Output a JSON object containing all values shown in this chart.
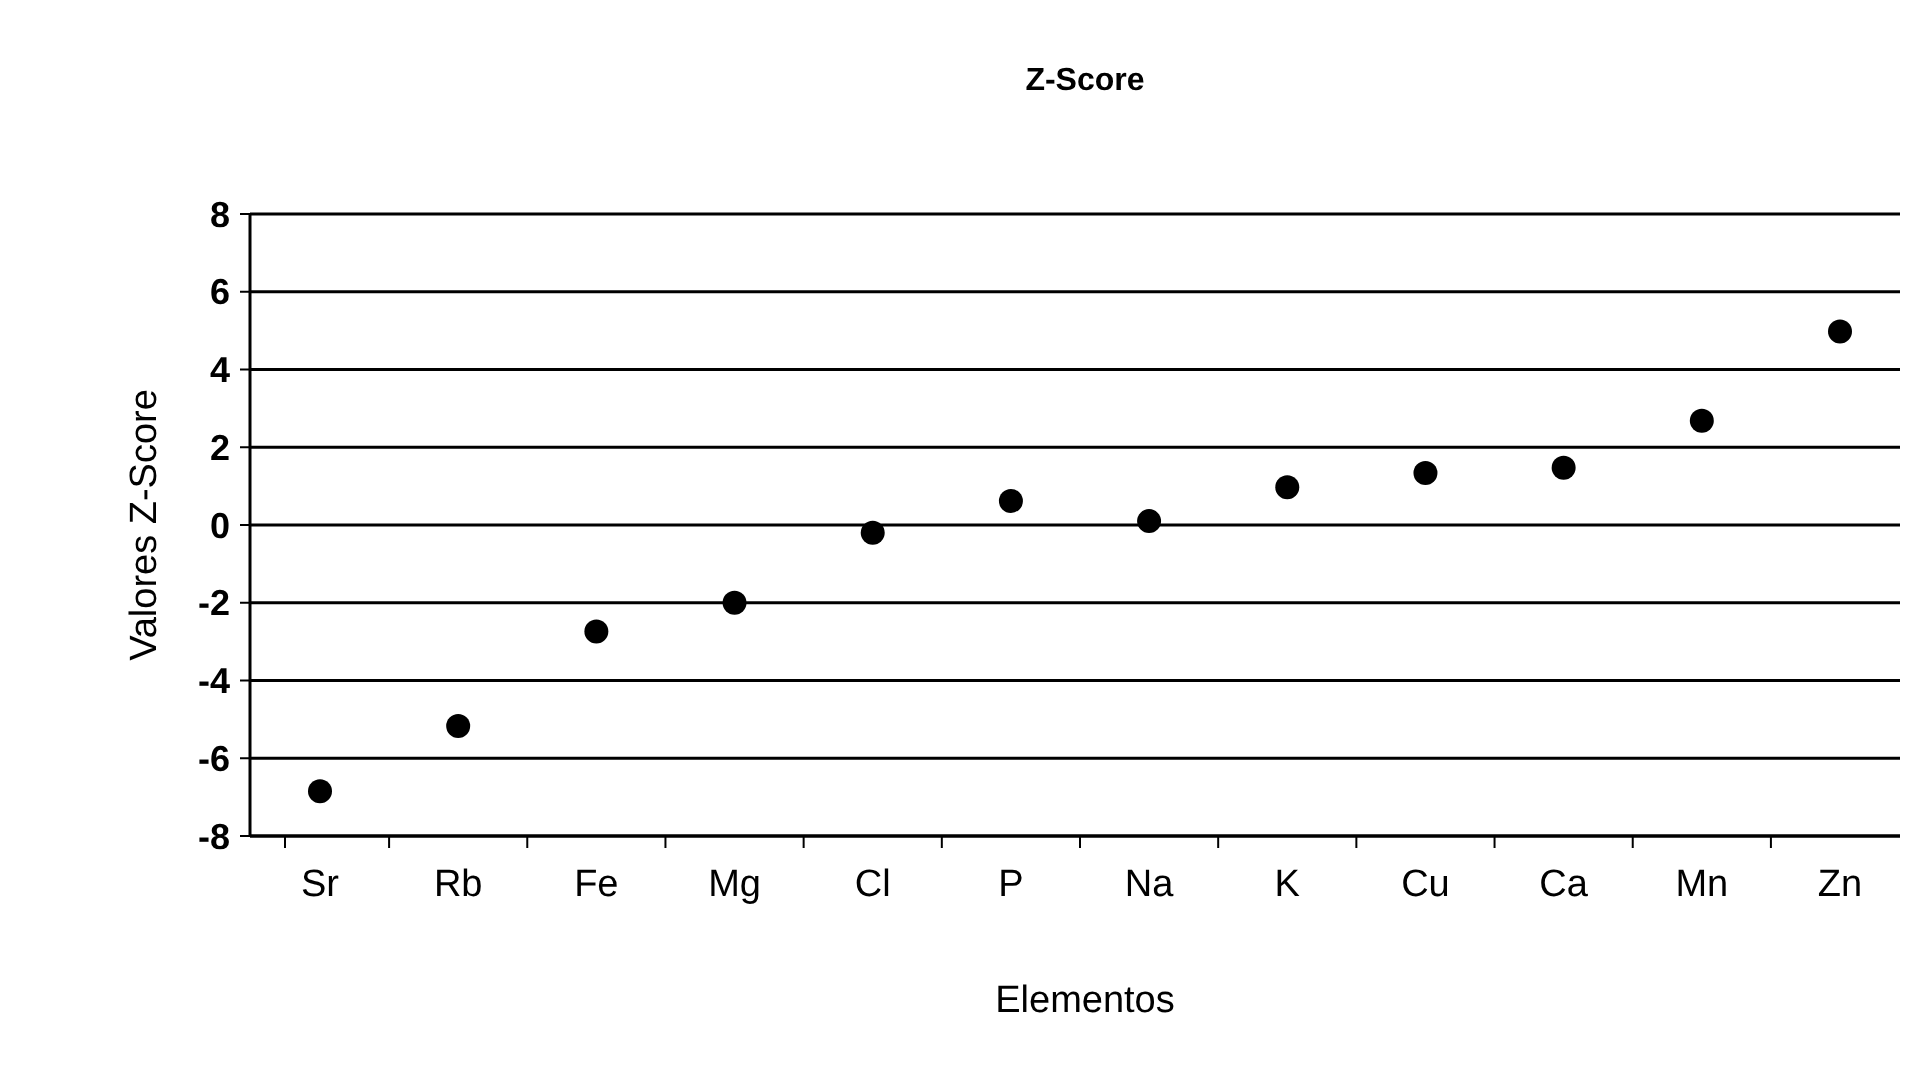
{
  "chart_data": {
    "type": "scatter",
    "title": "Z-Score",
    "xlabel": "Elementos",
    "ylabel": "Valores Z-Score",
    "categories": [
      "Sr",
      "Rb",
      "Fe",
      "Mg",
      "Cl",
      "P",
      "Na",
      "K",
      "Cu",
      "Ca",
      "Mn",
      "Zn"
    ],
    "series": [
      {
        "color": "#000000",
        "values": [
          -6.85,
          -5.17,
          -2.74,
          -2.0,
          -0.2,
          0.62,
          0.1,
          0.97,
          1.34,
          1.47,
          2.68,
          4.98
        ]
      }
    ],
    "ylim": [
      -8,
      8
    ],
    "yticks": [
      -8,
      -6,
      -4,
      -2,
      0,
      2,
      4,
      6,
      8
    ],
    "grid": "y",
    "marker": "circle"
  }
}
